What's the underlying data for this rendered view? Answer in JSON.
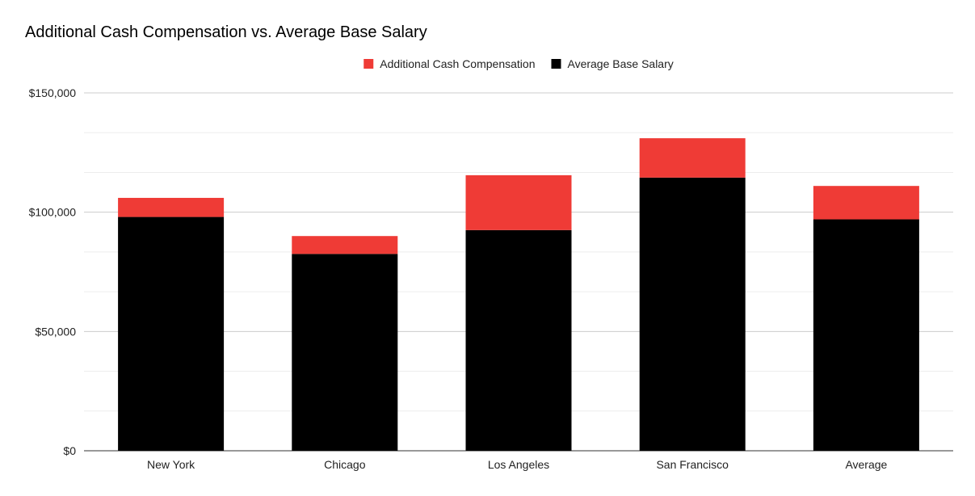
{
  "chart_data": {
    "type": "bar",
    "stacked": true,
    "title": "Additional Cash Compensation vs. Average Base Salary",
    "categories": [
      "New York",
      "Chicago",
      "Los Angeles",
      "San Francisco",
      "Average"
    ],
    "series": [
      {
        "name": "Average Base Salary",
        "color": "#000000",
        "values": [
          98000,
          82500,
          92500,
          114500,
          97000
        ]
      },
      {
        "name": "Additional Cash Compensation",
        "color": "#ef3b36",
        "values": [
          8000,
          7500,
          23000,
          16500,
          14000
        ]
      }
    ],
    "legend": {
      "position": "top-center",
      "order": [
        "Additional Cash Compensation",
        "Average Base Salary"
      ]
    },
    "ylim": [
      0,
      150000
    ],
    "yticks": [
      0,
      50000,
      100000,
      150000
    ],
    "ytick_labels": [
      "$0",
      "$50,000",
      "$100,000",
      "$150,000"
    ],
    "minor_gridlines": true,
    "xlabel": "",
    "ylabel": ""
  }
}
